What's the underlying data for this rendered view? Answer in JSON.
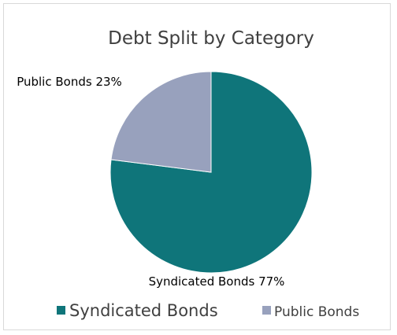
{
  "chart_data": {
    "type": "pie",
    "title": "Debt Split by Category",
    "categories": [
      "Syndicated Bonds",
      "Public Bonds"
    ],
    "values": [
      77,
      23
    ],
    "data_labels": [
      "Syndicated Bonds 77%",
      "Public Bonds 23%"
    ],
    "colors": [
      "#0f757a",
      "#98a1bd"
    ],
    "legend": {
      "placement": "bottom",
      "entries": [
        "Syndicated Bonds",
        "Public Bonds"
      ]
    },
    "start_angle_deg": 0,
    "direction": "clockwise"
  }
}
